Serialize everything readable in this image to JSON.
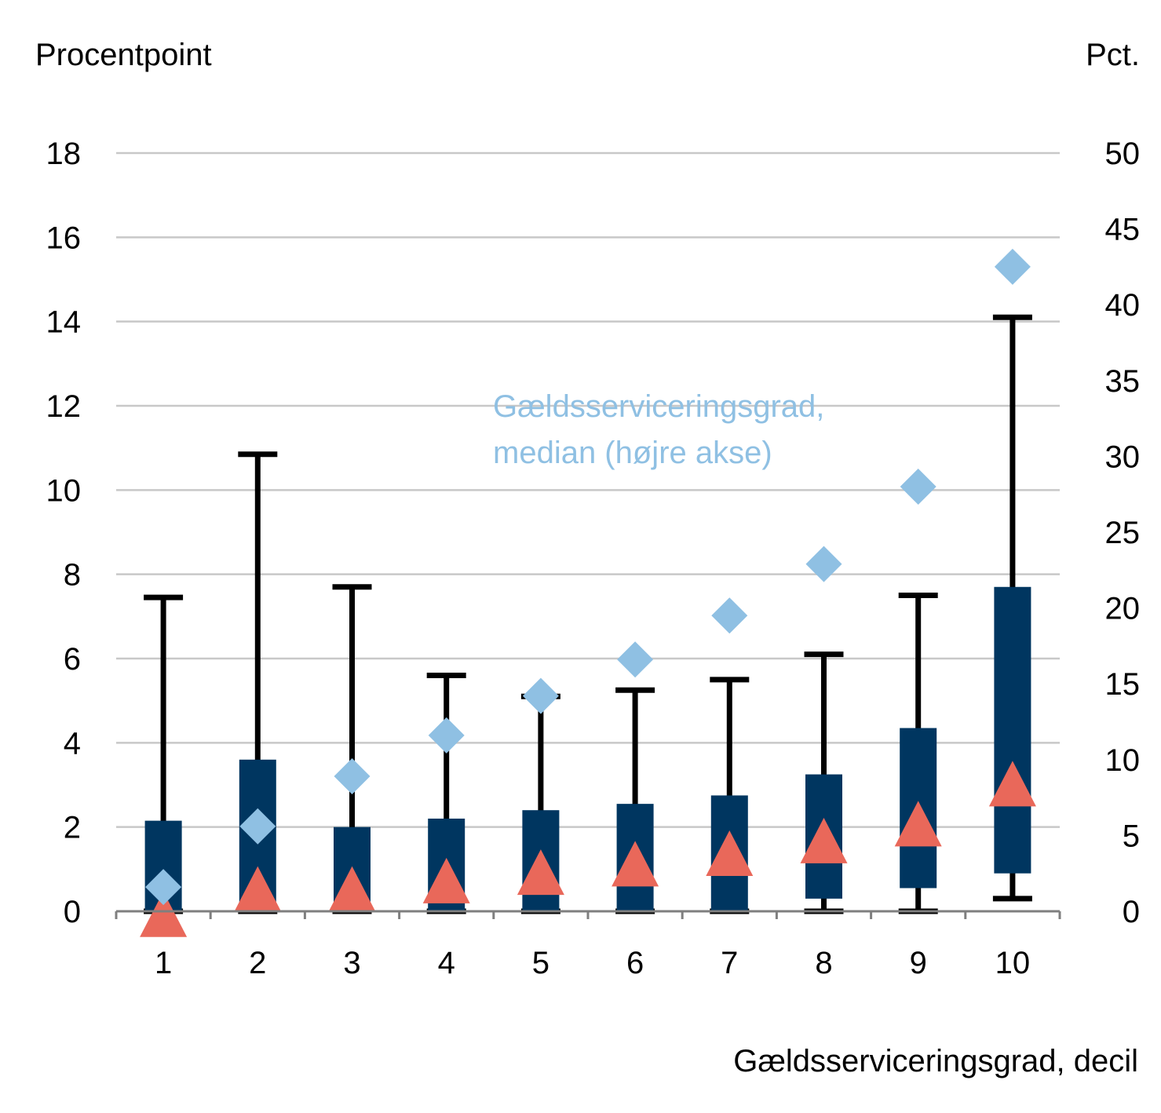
{
  "chart_data": {
    "type": "boxplot",
    "xlabel": "Gældsserviceringsgrad, decil",
    "ylabel_left": "Procentpoint",
    "ylabel_right": "Pct.",
    "annotation": [
      "Gældsserviceringsgrad,",
      "median (højre akse)"
    ],
    "categories": [
      "1",
      "2",
      "3",
      "4",
      "5",
      "6",
      "7",
      "8",
      "9",
      "10"
    ],
    "ylim_left": [
      0,
      18
    ],
    "yticks_left": [
      0,
      2,
      4,
      6,
      8,
      10,
      12,
      14,
      16,
      18
    ],
    "ylim_right": [
      0,
      50
    ],
    "yticks_right": [
      0,
      5,
      10,
      15,
      20,
      25,
      30,
      35,
      40,
      45,
      50
    ],
    "grid": true,
    "colors": {
      "box": "#003660",
      "whisker": "#000000",
      "triangle": "#e9685a",
      "diamond": "#8fc0e3",
      "grid": "#c8c8c8",
      "axis": "#7f7f7f"
    },
    "series": [
      {
        "kind": "box",
        "whisker_low": [
          0,
          0,
          0,
          0,
          0,
          0,
          0,
          0,
          0,
          0.3
        ],
        "q1": [
          0,
          0,
          0,
          0,
          0,
          0,
          0,
          0.3,
          0.55,
          0.9
        ],
        "q3": [
          2.15,
          3.6,
          2.0,
          2.2,
          2.4,
          2.55,
          2.75,
          3.25,
          4.35,
          7.7
        ],
        "whisker_high": [
          7.45,
          10.85,
          7.7,
          5.6,
          5.1,
          5.25,
          5.5,
          6.1,
          7.5,
          14.1
        ]
      },
      {
        "kind": "triangle",
        "values": [
          -0.2,
          0.4,
          0.4,
          0.6,
          0.8,
          1.0,
          1.25,
          1.55,
          1.95,
          2.9
        ]
      },
      {
        "kind": "diamond",
        "axis": "right",
        "values": [
          1.6,
          5.6,
          8.9,
          11.6,
          14.2,
          16.6,
          19.5,
          22.9,
          28.0,
          42.5
        ]
      }
    ]
  }
}
